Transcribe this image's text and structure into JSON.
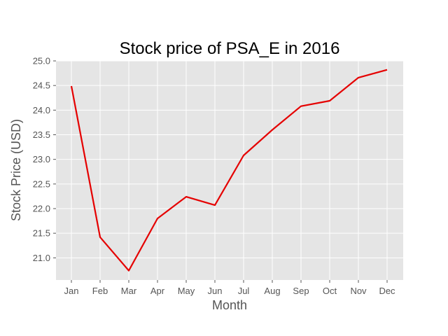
{
  "chart_data": {
    "type": "line",
    "title": "Stock price of PSA_E in 2016",
    "xlabel": "Month",
    "ylabel": "Stock Price (USD)",
    "categories": [
      "Jan",
      "Feb",
      "Mar",
      "Apr",
      "May",
      "Jun",
      "Jul",
      "Aug",
      "Sep",
      "Oct",
      "Nov",
      "Dec"
    ],
    "series": [
      {
        "values": [
          24.49,
          21.42,
          20.74,
          21.8,
          22.24,
          22.07,
          23.08,
          23.6,
          24.08,
          24.19,
          24.66,
          24.82
        ],
        "color": "#e50000"
      }
    ],
    "yticks": [
      "21.0",
      "21.5",
      "22.0",
      "22.5",
      "23.0",
      "23.5",
      "24.0",
      "24.5",
      "25.0"
    ],
    "ylim": [
      20.55,
      25.0
    ],
    "grid": true,
    "background": "#e5e5e5",
    "grid_color": "#ffffff"
  }
}
